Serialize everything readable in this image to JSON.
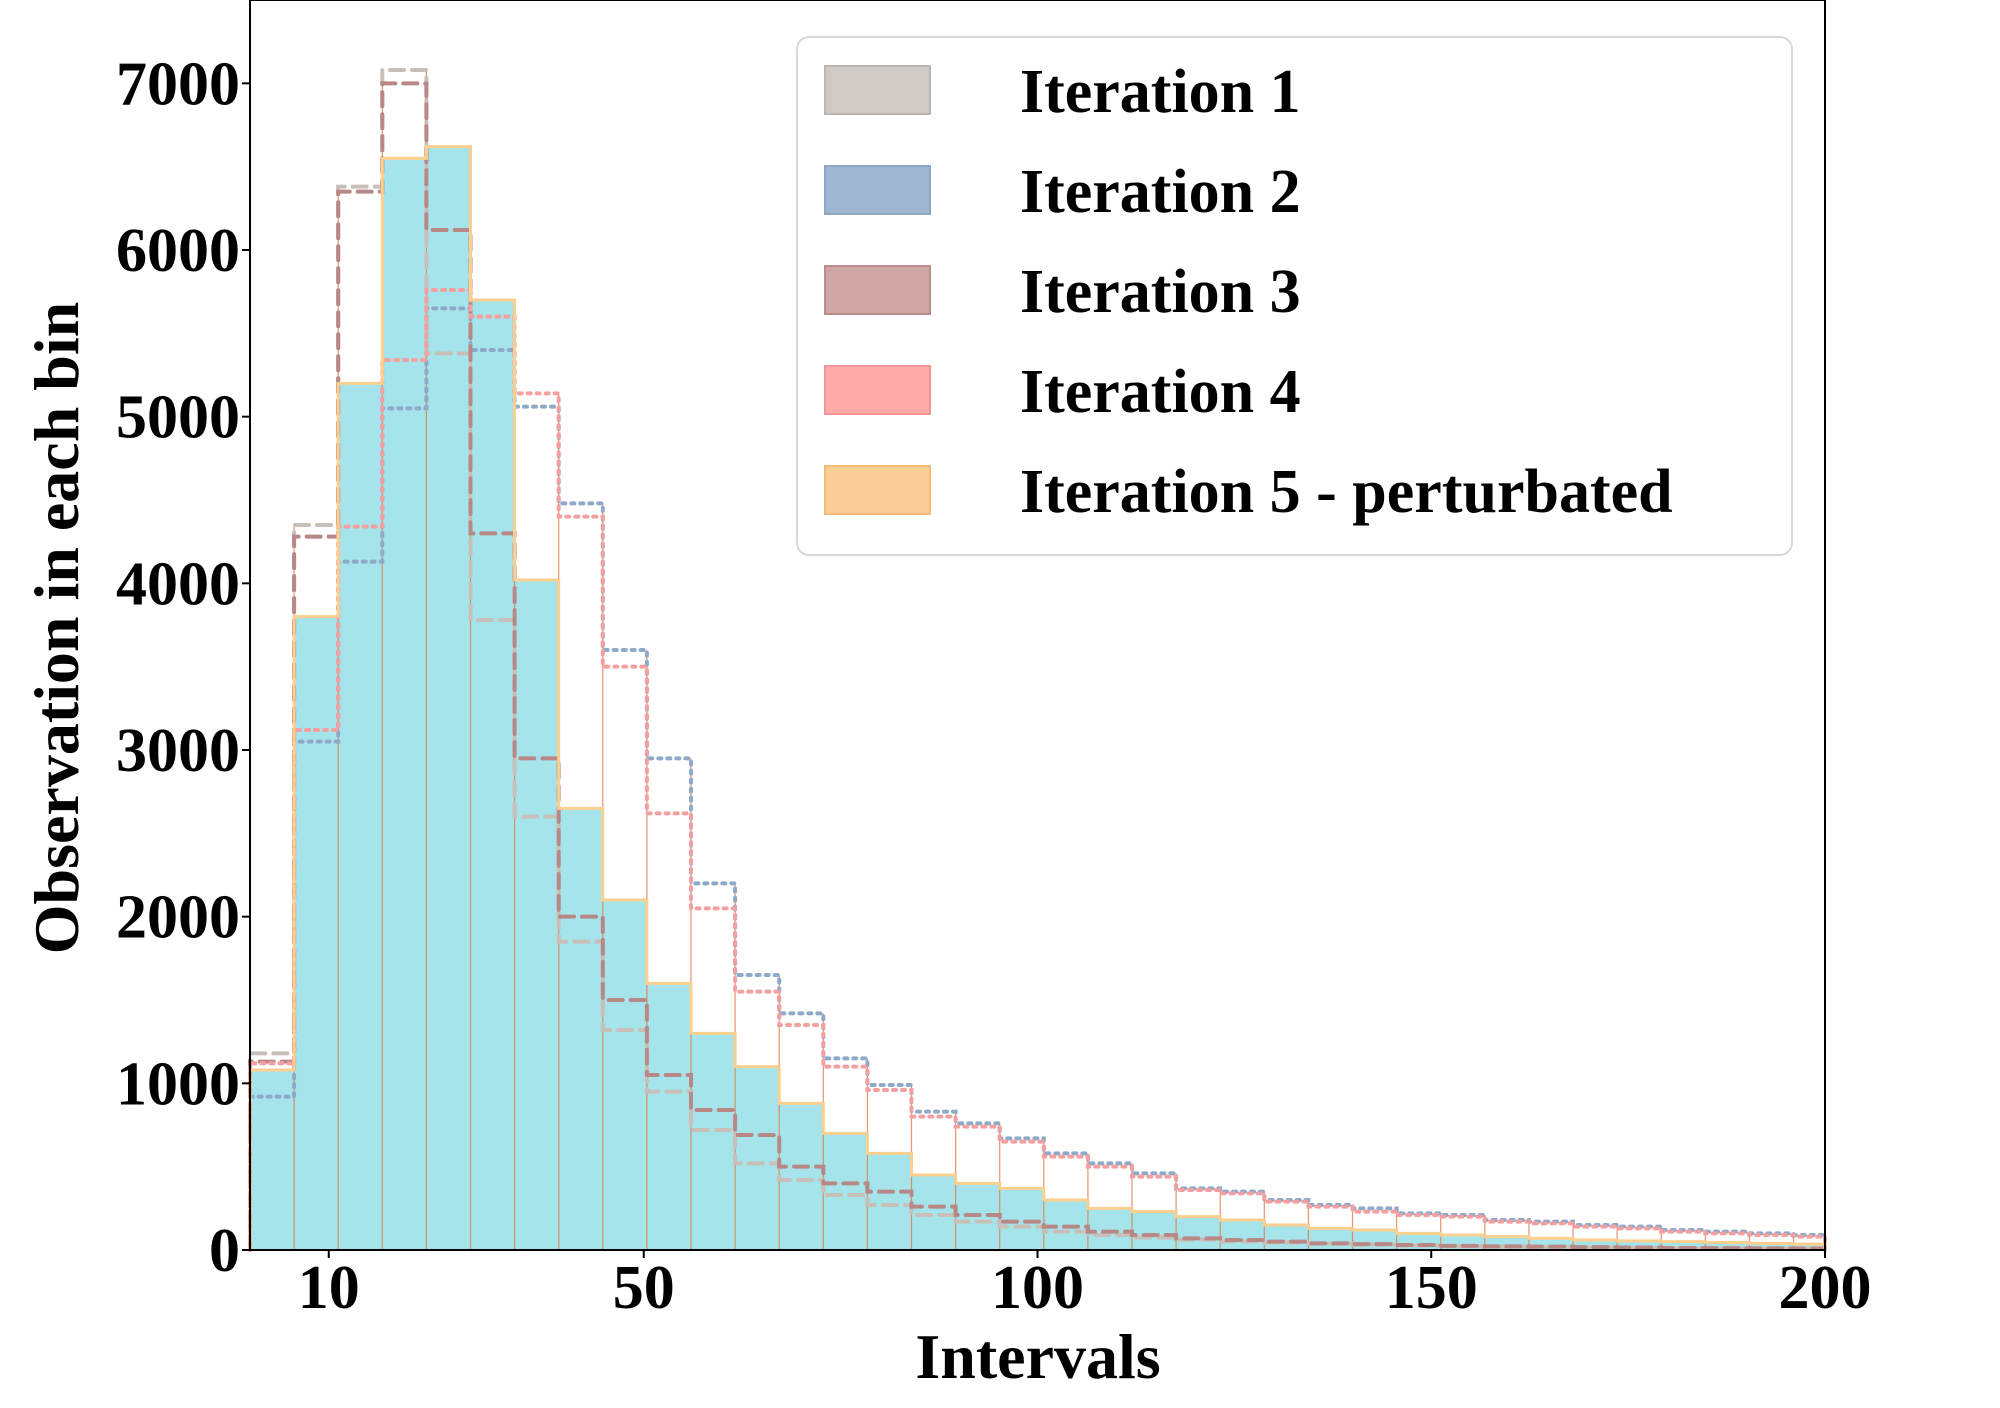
{
  "chart_data": {
    "type": "histogram",
    "title": "",
    "xlabel": "Intervals",
    "ylabel": "Observation in each bin",
    "xlim": [
      0,
      200
    ],
    "ylim": [
      0,
      7500
    ],
    "x_ticks": [
      10,
      50,
      100,
      150,
      200
    ],
    "y_ticks": [
      0,
      1000,
      2000,
      3000,
      4000,
      5000,
      6000,
      7000
    ],
    "legend_position": "top-right",
    "bins": [
      0,
      5.6,
      11.2,
      16.8,
      22.4,
      28,
      33.6,
      39.2,
      44.8,
      50.4,
      56,
      61.6,
      67.2,
      72.8,
      78.4,
      84,
      89.6,
      95.2,
      100.8,
      106.4,
      112,
      117.6,
      123.2,
      128.8,
      134.4,
      140,
      145.6,
      151.2,
      156.8,
      162.4,
      168,
      173.6,
      179.2,
      184.8,
      190.4,
      196,
      200
    ],
    "series": [
      {
        "name": "Iteration 1",
        "color": "#c8c0b8",
        "style": "dashed",
        "values": [
          1180,
          4350,
          6380,
          7080,
          5380,
          3780,
          2600,
          1850,
          1320,
          950,
          720,
          520,
          420,
          330,
          270,
          210,
          170,
          140,
          110,
          90,
          75,
          62,
          52,
          45,
          38,
          32,
          27,
          23,
          20,
          17,
          14,
          12,
          10,
          9,
          8,
          7
        ]
      },
      {
        "name": "Iteration 2",
        "color": "#8fa9c9",
        "style": "dotted",
        "values": [
          920,
          3050,
          4130,
          5050,
          5650,
          5400,
          5060,
          4480,
          3600,
          2950,
          2200,
          1650,
          1420,
          1150,
          990,
          830,
          760,
          670,
          580,
          520,
          460,
          370,
          350,
          300,
          270,
          250,
          220,
          210,
          180,
          170,
          150,
          140,
          120,
          110,
          100,
          90
        ]
      },
      {
        "name": "Iteration 3",
        "color": "#b88886",
        "style": "dashed",
        "values": [
          1130,
          4280,
          6350,
          7000,
          6120,
          4300,
          2950,
          2000,
          1500,
          1050,
          840,
          690,
          500,
          400,
          350,
          260,
          210,
          170,
          140,
          110,
          90,
          70,
          60,
          50,
          40,
          35,
          30,
          25,
          22,
          20,
          17,
          15,
          12,
          11,
          10,
          9
        ]
      },
      {
        "name": "Iteration 4",
        "color": "#f4a0a0",
        "style": "dotted",
        "values": [
          1120,
          3120,
          4340,
          5340,
          5760,
          5600,
          5140,
          4400,
          3500,
          2620,
          2050,
          1550,
          1350,
          1100,
          960,
          800,
          740,
          650,
          560,
          500,
          440,
          360,
          340,
          290,
          260,
          230,
          210,
          200,
          170,
          160,
          140,
          130,
          110,
          100,
          90,
          80
        ]
      },
      {
        "name": "Iteration 5 - perturbated",
        "color": "#fdcf8f",
        "style": "solid",
        "values": [
          1080,
          3800,
          5200,
          6550,
          6620,
          5700,
          4020,
          2650,
          2100,
          1600,
          1300,
          1100,
          880,
          700,
          580,
          450,
          400,
          370,
          300,
          250,
          230,
          200,
          180,
          150,
          130,
          120,
          100,
          90,
          80,
          70,
          60,
          55,
          50,
          45,
          40,
          35
        ]
      }
    ]
  },
  "legend_items": [
    {
      "label": "Iteration 1",
      "color": "#cfcac5",
      "edge": "#bdb6af"
    },
    {
      "label": "Iteration 2",
      "color": "#9fb6d0",
      "edge": "#8ea7c4"
    },
    {
      "label": "Iteration 3",
      "color": "#cea6a5",
      "edge": "#bb8c8b"
    },
    {
      "label": "Iteration 4",
      "color": "#ffabaa",
      "edge": "#f29594"
    },
    {
      "label": "Iteration 5 - perturbated",
      "color": "#fdcf98",
      "edge": "#f4bc76"
    }
  ]
}
